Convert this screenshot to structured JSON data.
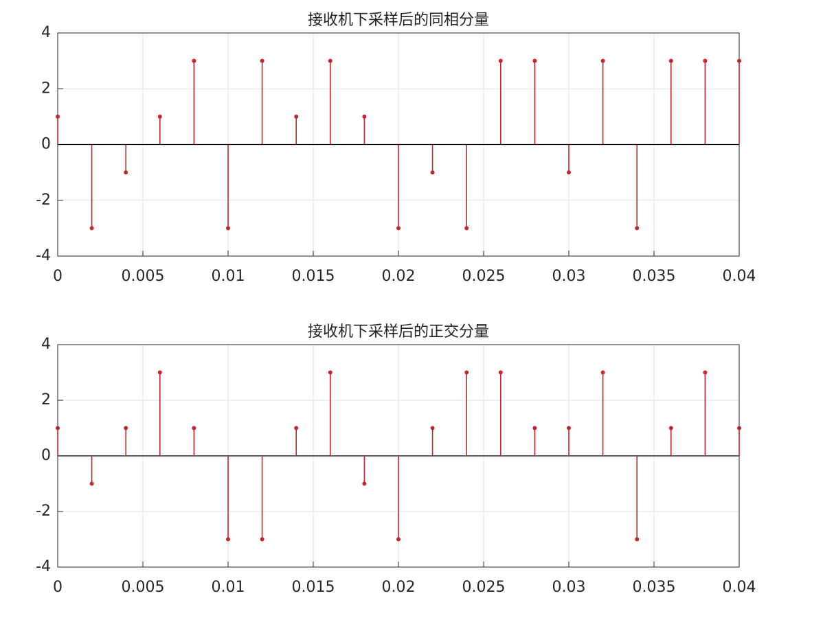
{
  "chart_data": [
    {
      "type": "stem",
      "title": "接收机下采样后的同相分量",
      "x": [
        0,
        0.002,
        0.004,
        0.006,
        0.008,
        0.01,
        0.012,
        0.014,
        0.016,
        0.018,
        0.02,
        0.022,
        0.024,
        0.026,
        0.028,
        0.03,
        0.032,
        0.034,
        0.036,
        0.038,
        0.04
      ],
      "values": [
        1,
        -3,
        -1,
        1,
        3,
        -3,
        3,
        1,
        3,
        1,
        -3,
        -1,
        -3,
        3,
        3,
        -1,
        3,
        -3,
        3,
        3,
        3
      ],
      "color": "#c0262b",
      "xlim": [
        0,
        0.04
      ],
      "xticks": [
        0,
        0.005,
        0.01,
        0.015,
        0.02,
        0.025,
        0.03,
        0.035,
        0.04
      ],
      "ylim": [
        -4,
        4
      ],
      "yticks": [
        -4,
        -2,
        0,
        2,
        4
      ],
      "grid": true
    },
    {
      "type": "stem",
      "title": "接收机下采样后的正交分量",
      "x": [
        0,
        0.002,
        0.004,
        0.006,
        0.008,
        0.01,
        0.012,
        0.014,
        0.016,
        0.018,
        0.02,
        0.022,
        0.024,
        0.026,
        0.028,
        0.03,
        0.032,
        0.034,
        0.036,
        0.038,
        0.04
      ],
      "values": [
        1,
        -1,
        1,
        3,
        1,
        -3,
        -3,
        1,
        3,
        -1,
        -3,
        1,
        3,
        3,
        1,
        1,
        3,
        -3,
        1,
        3,
        1
      ],
      "color": "#c0262b",
      "xlim": [
        0,
        0.04
      ],
      "xticks": [
        0,
        0.005,
        0.01,
        0.015,
        0.02,
        0.025,
        0.03,
        0.035,
        0.04
      ],
      "ylim": [
        -4,
        4
      ],
      "yticks": [
        -4,
        -2,
        0,
        2,
        4
      ],
      "grid": true
    }
  ]
}
